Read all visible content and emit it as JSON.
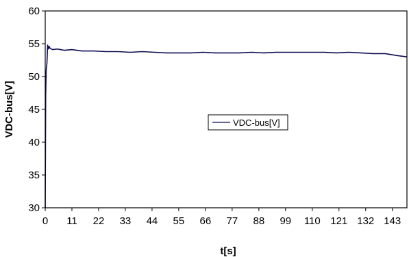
{
  "chart_data": {
    "type": "line",
    "title": "",
    "xlabel": "t[s]",
    "ylabel": "VDC-bus[V]",
    "xlim": [
      0,
      149
    ],
    "ylim": [
      30,
      60
    ],
    "x_ticks": [
      "0",
      "11",
      "22",
      "33",
      "44",
      "55",
      "66",
      "77",
      "88",
      "99",
      "110",
      "121",
      "132",
      "143"
    ],
    "y_ticks": [
      "30",
      "35",
      "40",
      "45",
      "50",
      "55",
      "60"
    ],
    "grid": false,
    "legend_position": "center-right",
    "series": [
      {
        "name": "VDC-bus[V]",
        "color": "#0b0b4f",
        "x": [
          0,
          0.2,
          0.4,
          0.7,
          1,
          1.3,
          1.6,
          2,
          3,
          5,
          8,
          11,
          15,
          20,
          25,
          30,
          35,
          40,
          45,
          50,
          55,
          60,
          65,
          70,
          75,
          80,
          85,
          90,
          95,
          100,
          105,
          110,
          115,
          120,
          125,
          130,
          135,
          140,
          145,
          149
        ],
        "y": [
          30,
          47,
          51,
          52,
          54.8,
          54.2,
          54.6,
          54.3,
          54.1,
          54.2,
          54.0,
          54.1,
          53.9,
          53.9,
          53.8,
          53.8,
          53.7,
          53.8,
          53.7,
          53.6,
          53.6,
          53.6,
          53.7,
          53.6,
          53.6,
          53.6,
          53.7,
          53.6,
          53.7,
          53.7,
          53.7,
          53.7,
          53.7,
          53.6,
          53.7,
          53.6,
          53.5,
          53.5,
          53.2,
          53.0
        ]
      }
    ]
  }
}
